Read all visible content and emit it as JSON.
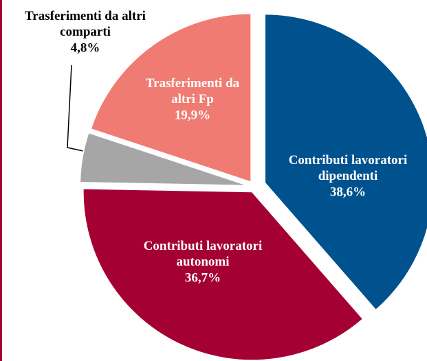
{
  "chart_data": {
    "type": "pie",
    "categories": [
      "Contributi lavoratori dipendenti",
      "Contributi lavoratori autonomi",
      "Trasferimenti da altri comparti",
      "Trasferimenti da altri Fp"
    ],
    "values": [
      38.6,
      36.7,
      4.8,
      19.9
    ],
    "value_labels": [
      "38,6%",
      "36,7%",
      "4,8%",
      "19,9%"
    ],
    "colors": [
      "#00528f",
      "#a50034",
      "#a6a6a6",
      "#f07b72"
    ]
  }
}
